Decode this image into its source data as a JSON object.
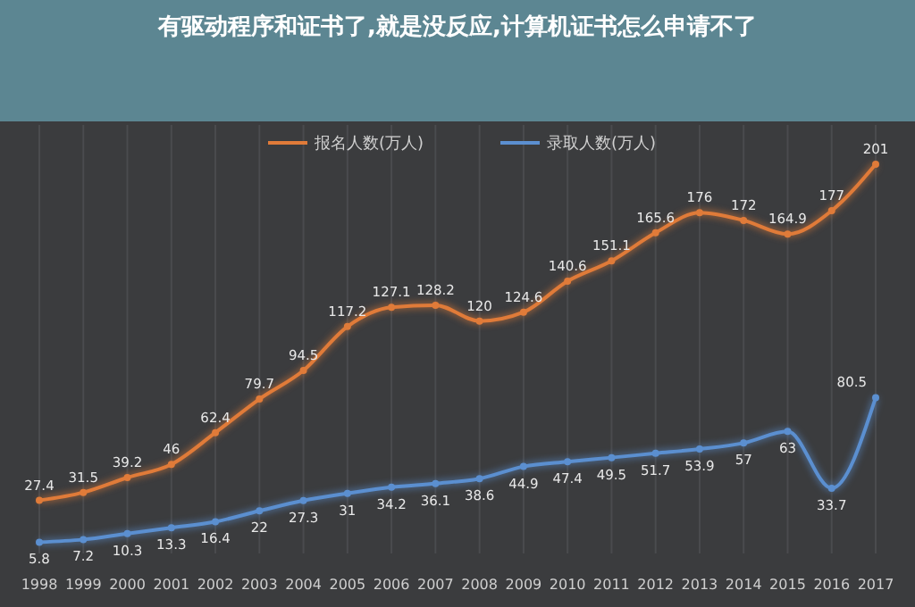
{
  "chart_data": {
    "type": "line",
    "title": "有驱动程序和证书了,就是没反应,计算机证书怎么申请不了",
    "categories": [
      "1998",
      "1999",
      "2000",
      "2001",
      "2002",
      "2003",
      "2004",
      "2005",
      "2006",
      "2007",
      "2008",
      "2009",
      "2010",
      "2011",
      "2012",
      "2013",
      "2014",
      "2015",
      "2016",
      "2017"
    ],
    "series": [
      {
        "name": "报名人数(万人)",
        "color": "#e07b39",
        "values": [
          27.4,
          31.5,
          39.2,
          46,
          62.4,
          79.7,
          94.5,
          117.2,
          127.1,
          128.2,
          120,
          124.6,
          140.6,
          151.1,
          165.6,
          176,
          172,
          164.9,
          177,
          201
        ]
      },
      {
        "name": "录取人数(万人)",
        "color": "#5b8fd0",
        "values": [
          5.8,
          7.2,
          10.3,
          13.3,
          16.4,
          22,
          27.3,
          31,
          34.2,
          36.1,
          38.6,
          44.9,
          47.4,
          49.5,
          51.7,
          53.9,
          57,
          63,
          33.7,
          80.5
        ]
      }
    ],
    "data_labels": true,
    "grid": "x",
    "legend": "top",
    "marker": "circle"
  }
}
